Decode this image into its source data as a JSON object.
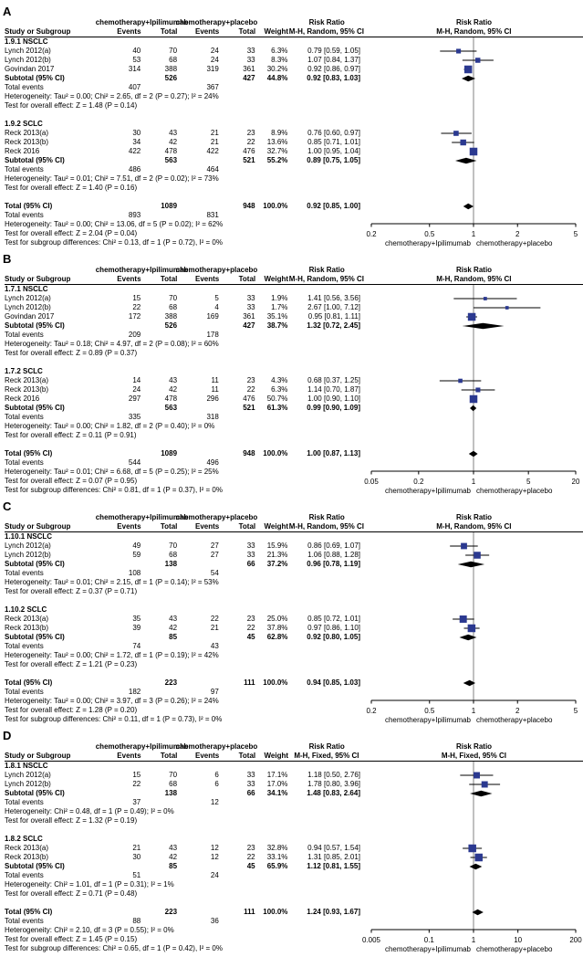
{
  "colors": {
    "square": "#2b3990",
    "diamond": "#000000",
    "ci_line": "#000000",
    "axis": "#000000",
    "center_line": "#808080"
  },
  "chart_data": [
    {
      "type": "forest",
      "panel_label": "A",
      "columns": {
        "group1": "chemotherapy+Ipilimumab",
        "group2": "chemotherapy+placebo",
        "study": "Study or Subgroup",
        "events": "Events",
        "total": "Total",
        "weight": "Weight",
        "rr_header_line1": "Risk Ratio",
        "rr_header_line2": "M-H, Random, 95% CI"
      },
      "groups": [
        {
          "name": "1.9.1 NSCLC",
          "studies": [
            {
              "name": "Lynch 2012(a)",
              "events1": 40,
              "total1": 70,
              "events2": 24,
              "total2": 33,
              "weight": "6.3%",
              "weight_value": 6.3,
              "rr": 0.79,
              "ci_low": 0.59,
              "ci_high": 1.05,
              "rr_text": "0.79 [0.59, 1.05]"
            },
            {
              "name": "Lynch 2012(b)",
              "events1": 53,
              "total1": 68,
              "events2": 24,
              "total2": 33,
              "weight": "8.3%",
              "weight_value": 8.3,
              "rr": 1.07,
              "ci_low": 0.84,
              "ci_high": 1.37,
              "rr_text": "1.07 [0.84, 1.37]"
            },
            {
              "name": "Govindan 2017",
              "events1": 314,
              "total1": 388,
              "events2": 319,
              "total2": 361,
              "weight": "30.2%",
              "weight_value": 30.2,
              "rr": 0.92,
              "ci_low": 0.86,
              "ci_high": 0.97,
              "rr_text": "0.92 [0.86, 0.97]"
            }
          ],
          "subtotal": {
            "label": "Subtotal (95% CI)",
            "total1": 526,
            "total2": 427,
            "weight": "44.8%",
            "rr": 0.92,
            "ci_low": 0.83,
            "ci_high": 1.03,
            "rr_text": "0.92 [0.83, 1.03]"
          },
          "total_events": {
            "label": "Total events",
            "events1": 407,
            "events2": 367
          },
          "heterogeneity": "Heterogeneity: Tau² = 0.00; Chi² = 2.65, df = 2 (P = 0.27); I² = 24%",
          "overall_effect": "Test for overall effect: Z = 1.48 (P = 0.14)"
        },
        {
          "name": "1.9.2 SCLC",
          "studies": [
            {
              "name": "Reck 2013(a)",
              "events1": 30,
              "total1": 43,
              "events2": 21,
              "total2": 23,
              "weight": "8.9%",
              "weight_value": 8.9,
              "rr": 0.76,
              "ci_low": 0.6,
              "ci_high": 0.97,
              "rr_text": "0.76 [0.60, 0.97]"
            },
            {
              "name": "Reck 2013(b)",
              "events1": 34,
              "total1": 42,
              "events2": 21,
              "total2": 22,
              "weight": "13.6%",
              "weight_value": 13.6,
              "rr": 0.85,
              "ci_low": 0.71,
              "ci_high": 1.01,
              "rr_text": "0.85 [0.71, 1.01]"
            },
            {
              "name": "Reck 2016",
              "events1": 422,
              "total1": 478,
              "events2": 422,
              "total2": 476,
              "weight": "32.7%",
              "weight_value": 32.7,
              "rr": 1.0,
              "ci_low": 0.95,
              "ci_high": 1.04,
              "rr_text": "1.00 [0.95, 1.04]"
            }
          ],
          "subtotal": {
            "label": "Subtotal (95% CI)",
            "total1": 563,
            "total2": 521,
            "weight": "55.2%",
            "rr": 0.89,
            "ci_low": 0.75,
            "ci_high": 1.05,
            "rr_text": "0.89 [0.75, 1.05]"
          },
          "total_events": {
            "label": "Total events",
            "events1": 486,
            "events2": 464
          },
          "heterogeneity": "Heterogeneity: Tau² = 0.01; Chi² = 7.51, df = 2 (P = 0.02); I² = 73%",
          "overall_effect": "Test for overall effect: Z = 1.40 (P = 0.16)"
        }
      ],
      "total": {
        "label": "Total (95% CI)",
        "total1": 1089,
        "total2": 948,
        "weight": "100.0%",
        "rr": 0.92,
        "ci_low": 0.85,
        "ci_high": 1.0,
        "rr_text": "0.92 [0.85, 1.00]"
      },
      "total_events": {
        "label": "Total events",
        "events1": 893,
        "events2": 831
      },
      "heterogeneity": "Heterogeneity: Tau² = 0.00; Chi² = 13.06, df = 5 (P = 0.02); I² = 62%",
      "overall_effect": "Test for overall effect: Z = 2.04 (P = 0.04)",
      "subgroup_test": "Test for subgroup differences: Chi² = 0.13, df = 1 (P = 0.72), I² = 0%",
      "axis": {
        "ticks": [
          0.2,
          0.5,
          1,
          2,
          5
        ],
        "tick_labels": [
          "0.2",
          "0.5",
          "1",
          "2",
          "5"
        ],
        "favors_left": "chemotherapy+Ipilimumab",
        "favors_right": "chemotherapy+placebo"
      }
    },
    {
      "type": "forest",
      "panel_label": "B",
      "columns": {
        "group1": "chemotherapy+Ipilimumab",
        "group2": "chemotherapy+placebo",
        "study": "Study or Subgroup",
        "events": "Events",
        "total": "Total",
        "weight": "Weight",
        "rr_header_line1": "Risk Ratio",
        "rr_header_line2": "M-H, Random, 95% CI"
      },
      "groups": [
        {
          "name": "1.7.1 NSCLC",
          "studies": [
            {
              "name": "Lynch 2012(a)",
              "events1": 15,
              "total1": 70,
              "events2": 5,
              "total2": 33,
              "weight": "1.9%",
              "weight_value": 1.9,
              "rr": 1.41,
              "ci_low": 0.56,
              "ci_high": 3.56,
              "rr_text": "1.41 [0.56, 3.56]"
            },
            {
              "name": "Lynch 2012(b)",
              "events1": 22,
              "total1": 68,
              "events2": 4,
              "total2": 33,
              "weight": "1.7%",
              "weight_value": 1.7,
              "rr": 2.67,
              "ci_low": 1.0,
              "ci_high": 7.12,
              "rr_text": "2.67 [1.00, 7.12]"
            },
            {
              "name": "Govindan 2017",
              "events1": 172,
              "total1": 388,
              "events2": 169,
              "total2": 361,
              "weight": "35.1%",
              "weight_value": 35.1,
              "rr": 0.95,
              "ci_low": 0.81,
              "ci_high": 1.11,
              "rr_text": "0.95 [0.81, 1.11]"
            }
          ],
          "subtotal": {
            "label": "Subtotal (95% CI)",
            "total1": 526,
            "total2": 427,
            "weight": "38.7%",
            "rr": 1.32,
            "ci_low": 0.72,
            "ci_high": 2.45,
            "rr_text": "1.32 [0.72, 2.45]"
          },
          "total_events": {
            "label": "Total events",
            "events1": 209,
            "events2": 178
          },
          "heterogeneity": "Heterogeneity: Tau² = 0.18; Chi² = 4.97, df = 2 (P = 0.08); I² = 60%",
          "overall_effect": "Test for overall effect: Z = 0.89 (P = 0.37)"
        },
        {
          "name": "1.7.2 SCLC",
          "studies": [
            {
              "name": "Reck 2013(a)",
              "events1": 14,
              "total1": 43,
              "events2": 11,
              "total2": 23,
              "weight": "4.3%",
              "weight_value": 4.3,
              "rr": 0.68,
              "ci_low": 0.37,
              "ci_high": 1.25,
              "rr_text": "0.68 [0.37, 1.25]"
            },
            {
              "name": "Reck 2013(b)",
              "events1": 24,
              "total1": 42,
              "events2": 11,
              "total2": 22,
              "weight": "6.3%",
              "weight_value": 6.3,
              "rr": 1.14,
              "ci_low": 0.7,
              "ci_high": 1.87,
              "rr_text": "1.14 [0.70, 1.87]"
            },
            {
              "name": "Reck 2016",
              "events1": 297,
              "total1": 478,
              "events2": 296,
              "total2": 476,
              "weight": "50.7%",
              "weight_value": 50.7,
              "rr": 1.0,
              "ci_low": 0.9,
              "ci_high": 1.1,
              "rr_text": "1.00 [0.90, 1.10]"
            }
          ],
          "subtotal": {
            "label": "Subtotal (95% CI)",
            "total1": 563,
            "total2": 521,
            "weight": "61.3%",
            "rr": 0.99,
            "ci_low": 0.9,
            "ci_high": 1.09,
            "rr_text": "0.99 [0.90, 1.09]"
          },
          "total_events": {
            "label": "Total events",
            "events1": 335,
            "events2": 318
          },
          "heterogeneity": "Heterogeneity: Tau² = 0.00; Chi² = 1.82, df = 2 (P = 0.40); I² = 0%",
          "overall_effect": "Test for overall effect: Z = 0.11 (P = 0.91)"
        }
      ],
      "total": {
        "label": "Total (95% CI)",
        "total1": 1089,
        "total2": 948,
        "weight": "100.0%",
        "rr": 1.0,
        "ci_low": 0.87,
        "ci_high": 1.13,
        "rr_text": "1.00 [0.87, 1.13]"
      },
      "total_events": {
        "label": "Total events",
        "events1": 544,
        "events2": 496
      },
      "heterogeneity": "Heterogeneity: Tau² = 0.01; Chi² = 6.68, df = 5 (P = 0.25); I² = 25%",
      "overall_effect": "Test for overall effect: Z = 0.07 (P = 0.95)",
      "subgroup_test": "Test for subgroup differences: Chi² = 0.81, df = 1 (P = 0.37), I² = 0%",
      "axis": {
        "ticks": [
          0.05,
          0.2,
          1,
          5,
          20
        ],
        "tick_labels": [
          "0.05",
          "0.2",
          "1",
          "5",
          "20"
        ],
        "favors_left": "chemotherapy+Ipilimumab",
        "favors_right": "chemotherapy+placebo"
      }
    },
    {
      "type": "forest",
      "panel_label": "C",
      "columns": {
        "group1": "chemotherapy+Ipilimumab",
        "group2": "chemotherapy+placebo",
        "study": "Study or Subgroup",
        "events": "Events",
        "total": "Total",
        "weight": "Weight",
        "rr_header_line1": "Risk Ratio",
        "rr_header_line2": "M-H, Random, 95% CI"
      },
      "groups": [
        {
          "name": "1.10.1 NSCLC",
          "studies": [
            {
              "name": "Lynch 2012(a)",
              "events1": 49,
              "total1": 70,
              "events2": 27,
              "total2": 33,
              "weight": "15.9%",
              "weight_value": 15.9,
              "rr": 0.86,
              "ci_low": 0.69,
              "ci_high": 1.07,
              "rr_text": "0.86 [0.69, 1.07]"
            },
            {
              "name": "Lynch 2012(b)",
              "events1": 59,
              "total1": 68,
              "events2": 27,
              "total2": 33,
              "weight": "21.3%",
              "weight_value": 21.3,
              "rr": 1.06,
              "ci_low": 0.88,
              "ci_high": 1.28,
              "rr_text": "1.06 [0.88, 1.28]"
            }
          ],
          "subtotal": {
            "label": "Subtotal (95% CI)",
            "total1": 138,
            "total2": 66,
            "weight": "37.2%",
            "rr": 0.96,
            "ci_low": 0.78,
            "ci_high": 1.19,
            "rr_text": "0.96 [0.78, 1.19]"
          },
          "total_events": {
            "label": "Total events",
            "events1": 108,
            "events2": 54
          },
          "heterogeneity": "Heterogeneity: Tau² = 0.01; Chi² = 2.15, df = 1 (P = 0.14); I² = 53%",
          "overall_effect": "Test for overall effect: Z = 0.37 (P = 0.71)"
        },
        {
          "name": "1.10.2 SCLC",
          "studies": [
            {
              "name": "Reck 2013(a)",
              "events1": 35,
              "total1": 43,
              "events2": 22,
              "total2": 23,
              "weight": "25.0%",
              "weight_value": 25.0,
              "rr": 0.85,
              "ci_low": 0.72,
              "ci_high": 1.01,
              "rr_text": "0.85 [0.72, 1.01]"
            },
            {
              "name": "Reck 2013(b)",
              "events1": 39,
              "total1": 42,
              "events2": 21,
              "total2": 22,
              "weight": "37.8%",
              "weight_value": 37.8,
              "rr": 0.97,
              "ci_low": 0.86,
              "ci_high": 1.1,
              "rr_text": "0.97 [0.86, 1.10]"
            }
          ],
          "subtotal": {
            "label": "Subtotal (95% CI)",
            "total1": 85,
            "total2": 45,
            "weight": "62.8%",
            "rr": 0.92,
            "ci_low": 0.8,
            "ci_high": 1.05,
            "rr_text": "0.92 [0.80, 1.05]"
          },
          "total_events": {
            "label": "Total events",
            "events1": 74,
            "events2": 43
          },
          "heterogeneity": "Heterogeneity: Tau² = 0.00; Chi² = 1.72, df = 1 (P = 0.19); I² = 42%",
          "overall_effect": "Test for overall effect: Z = 1.21 (P = 0.23)"
        }
      ],
      "total": {
        "label": "Total (95% CI)",
        "total1": 223,
        "total2": 111,
        "weight": "100.0%",
        "rr": 0.94,
        "ci_low": 0.85,
        "ci_high": 1.03,
        "rr_text": "0.94 [0.85, 1.03]"
      },
      "total_events": {
        "label": "Total events",
        "events1": 182,
        "events2": 97
      },
      "heterogeneity": "Heterogeneity: Tau² = 0.00; Chi² = 3.97, df = 3 (P = 0.26); I² = 24%",
      "overall_effect": "Test for overall effect: Z = 1.28 (P = 0.20)",
      "subgroup_test": "Test for subgroup differences: Chi² = 0.11, df = 1 (P = 0.73), I² = 0%",
      "axis": {
        "ticks": [
          0.2,
          0.5,
          1,
          2,
          5
        ],
        "tick_labels": [
          "0.2",
          "0.5",
          "1",
          "2",
          "5"
        ],
        "favors_left": "chemotherapy+Ipilimumab",
        "favors_right": "chemotherapy+placebo"
      }
    },
    {
      "type": "forest",
      "panel_label": "D",
      "columns": {
        "group1": "chemotherapy+Ipilimumab",
        "group2": "chemotherapy+placebo",
        "study": "Study or Subgroup",
        "events": "Events",
        "total": "Total",
        "weight": "Weight",
        "rr_header_line1": "Risk Ratio",
        "rr_header_line2": "M-H, Fixed, 95% CI"
      },
      "groups": [
        {
          "name": "1.8.1 NSCLC",
          "studies": [
            {
              "name": "Lynch 2012(a)",
              "events1": 15,
              "total1": 70,
              "events2": 6,
              "total2": 33,
              "weight": "17.1%",
              "weight_value": 17.1,
              "rr": 1.18,
              "ci_low": 0.5,
              "ci_high": 2.76,
              "rr_text": "1.18 [0.50, 2.76]"
            },
            {
              "name": "Lynch 2012(b)",
              "events1": 22,
              "total1": 68,
              "events2": 6,
              "total2": 33,
              "weight": "17.0%",
              "weight_value": 17.0,
              "rr": 1.78,
              "ci_low": 0.8,
              "ci_high": 3.96,
              "rr_text": "1.78 [0.80, 3.96]"
            }
          ],
          "subtotal": {
            "label": "Subtotal (95% CI)",
            "total1": 138,
            "total2": 66,
            "weight": "34.1%",
            "rr": 1.48,
            "ci_low": 0.83,
            "ci_high": 2.64,
            "rr_text": "1.48 [0.83, 2.64]"
          },
          "total_events": {
            "label": "Total events",
            "events1": 37,
            "events2": 12
          },
          "heterogeneity": "Heterogeneity: Chi² = 0.48, df = 1 (P = 0.49); I² = 0%",
          "overall_effect": "Test for overall effect: Z = 1.32 (P = 0.19)"
        },
        {
          "name": "1.8.2 SCLC",
          "studies": [
            {
              "name": "Reck 2013(a)",
              "events1": 21,
              "total1": 43,
              "events2": 12,
              "total2": 23,
              "weight": "32.8%",
              "weight_value": 32.8,
              "rr": 0.94,
              "ci_low": 0.57,
              "ci_high": 1.54,
              "rr_text": "0.94 [0.57, 1.54]"
            },
            {
              "name": "Reck 2013(b)",
              "events1": 30,
              "total1": 42,
              "events2": 12,
              "total2": 22,
              "weight": "33.1%",
              "weight_value": 33.1,
              "rr": 1.31,
              "ci_low": 0.85,
              "ci_high": 2.01,
              "rr_text": "1.31 [0.85, 2.01]"
            }
          ],
          "subtotal": {
            "label": "Subtotal (95% CI)",
            "total1": 85,
            "total2": 45,
            "weight": "65.9%",
            "rr": 1.12,
            "ci_low": 0.81,
            "ci_high": 1.55,
            "rr_text": "1.12 [0.81, 1.55]"
          },
          "total_events": {
            "label": "Total events",
            "events1": 51,
            "events2": 24
          },
          "heterogeneity": "Heterogeneity: Chi² = 1.01, df = 1 (P = 0.31); I² = 1%",
          "overall_effect": "Test for overall effect: Z = 0.71 (P = 0.48)"
        }
      ],
      "total": {
        "label": "Total (95% CI)",
        "total1": 223,
        "total2": 111,
        "weight": "100.0%",
        "rr": 1.24,
        "ci_low": 0.93,
        "ci_high": 1.67,
        "rr_text": "1.24 [0.93, 1.67]"
      },
      "total_events": {
        "label": "Total events",
        "events1": 88,
        "events2": 36
      },
      "heterogeneity": "Heterogeneity: Chi² = 2.10, df = 3 (P = 0.55); I² = 0%",
      "overall_effect": "Test for overall effect: Z = 1.45 (P = 0.15)",
      "subgroup_test": "Test for subgroup differences: Chi² = 0.65, df = 1 (P = 0.42), I² = 0%",
      "axis": {
        "ticks": [
          0.005,
          0.1,
          1,
          10,
          200
        ],
        "tick_labels": [
          "0.005",
          "0.1",
          "1",
          "10",
          "200"
        ],
        "favors_left": "chemotherapy+Ipilimumab",
        "favors_right": "chemotherapy+placebo"
      }
    }
  ]
}
